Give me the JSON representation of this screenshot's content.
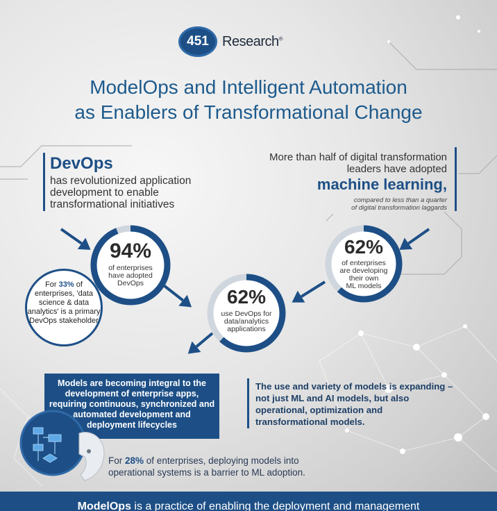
{
  "logo": {
    "number": "451",
    "name": "Research",
    "mark": "®"
  },
  "title": {
    "line1": "ModelOps and Intelligent Automation",
    "line2": "as Enablers of Transformational Change"
  },
  "devops": {
    "heading": "DevOps",
    "body": "has revolutionized application development to enable transformational initiatives"
  },
  "ml": {
    "lead": "More than half of digital transformation leaders have adopted",
    "keyword": "machine learning",
    "comma": ",",
    "note_line1": "compared to less than a quarter",
    "note_line2": "of digital transformation laggards"
  },
  "stats": {
    "devops_adoption": {
      "value": "94%",
      "label_l1": "of enterprises",
      "label_l2": "have adopted",
      "label_l3": "DevOps",
      "fraction": 0.94
    },
    "ml_models": {
      "value": "62%",
      "label_l1": "of enterprises",
      "label_l2": "are developing",
      "label_l3": "their own",
      "label_l4": "ML models",
      "fraction": 0.62
    },
    "devops_data": {
      "value": "62%",
      "label_l1": "use DevOps for",
      "label_l2": "data/analytics",
      "label_l3": "applications",
      "fraction": 0.62
    }
  },
  "stakeholder": {
    "pre": "For ",
    "pct": "33%",
    "post": " of enterprises, 'data science & data analytics' is a primary DevOps stakeholder"
  },
  "models_box": "Models are becoming integral to the development of enterprise apps, requiring continuous, synchronized and automated development and deployment lifecycles",
  "variety": "The use and variety of models is expanding – not just ML and AI models, but also operational, optimization and transformational models.",
  "barrier": {
    "pre": "For ",
    "pct": "28%",
    "post": " of enterprises, deploying models into operational systems is a barrier to ML adoption."
  },
  "footer": {
    "bold": "ModelOps",
    "rest": " is a practice of enabling the deployment and management"
  },
  "colors": {
    "brand": "#1d4f86",
    "accent": "#2f6aa8",
    "ring_track": "#cfd6de"
  }
}
